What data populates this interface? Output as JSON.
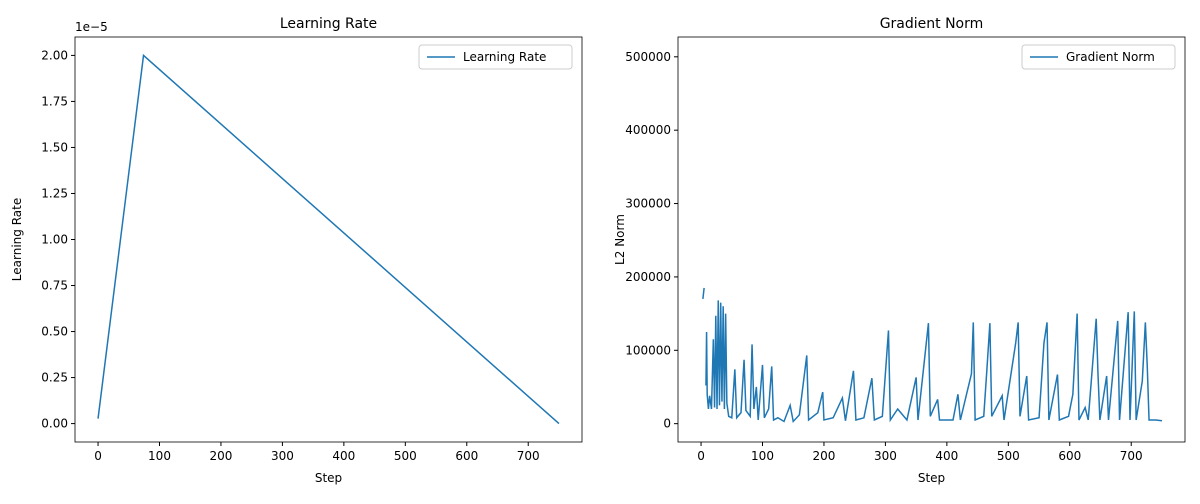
{
  "chart_data": [
    {
      "type": "line",
      "title": "Learning Rate",
      "xlabel": "Step",
      "ylabel": "Learning Rate",
      "y_offset_text": "1e−5",
      "x": [
        0,
        74,
        750
      ],
      "series": [
        {
          "name": "Learning Rate",
          "color": "#1f77b4",
          "values": [
            0.027,
            2.0,
            0.0
          ]
        }
      ],
      "xlim": [
        -37.5,
        787.5
      ],
      "ylim": [
        -0.1,
        2.1
      ],
      "xticks": [
        0,
        100,
        200,
        300,
        400,
        500,
        600,
        700
      ],
      "yticks": [
        {
          "value": 0,
          "label": "0.00"
        },
        0.25,
        {
          "value": 0.5,
          "label": "0.50"
        },
        0.75,
        {
          "value": 1,
          "label": "1.00"
        },
        1.25,
        {
          "value": 1.5,
          "label": "1.50"
        },
        1.75,
        {
          "value": 2,
          "label": "2.00"
        }
      ],
      "legend": "upper right"
    },
    {
      "type": "line",
      "title": "Gradient Norm",
      "xlabel": "Step",
      "ylabel": "L2 Norm",
      "x": [
        3,
        5,
        6,
        8,
        9,
        10,
        12,
        14,
        17,
        20,
        22,
        24,
        26,
        28,
        30,
        32,
        34,
        36,
        38,
        40,
        42,
        45,
        50,
        55,
        58,
        65,
        70,
        73,
        80,
        83,
        86,
        90,
        93,
        100,
        103,
        110,
        115,
        118,
        125,
        135,
        145,
        150,
        160,
        172,
        175,
        190,
        198,
        200,
        215,
        230,
        235,
        248,
        252,
        265,
        278,
        282,
        295,
        305,
        308,
        320,
        335,
        350,
        353,
        370,
        373,
        385,
        388,
        410,
        418,
        422,
        440,
        443,
        446,
        460,
        465,
        470,
        473,
        490,
        493,
        512,
        516,
        519,
        530,
        533,
        550,
        558,
        563,
        566,
        580,
        583,
        598,
        605,
        612,
        615,
        625,
        630,
        643,
        646,
        649,
        660,
        663,
        678,
        681,
        695,
        698,
        705,
        708,
        718,
        723,
        726,
        729,
        740,
        750
      ],
      "series": [
        {
          "name": "Gradient Norm",
          "color": "#1f77b4",
          "values": [
            170000,
            185000,
            null,
            52000,
            125000,
            40000,
            20000,
            38000,
            20000,
            115000,
            22000,
            147000,
            20000,
            168000,
            25000,
            165000,
            30000,
            160000,
            20000,
            150000,
            28000,
            10000,
            8000,
            74000,
            8000,
            15000,
            87000,
            18000,
            10000,
            108000,
            20000,
            50000,
            5000,
            80000,
            8000,
            20000,
            78000,
            5000,
            8000,
            3000,
            25000,
            3000,
            12000,
            93000,
            5000,
            15000,
            43000,
            5000,
            8000,
            35000,
            4000,
            72000,
            5000,
            8000,
            62000,
            5000,
            10000,
            127000,
            5000,
            20000,
            5000,
            63000,
            5000,
            137000,
            10000,
            33000,
            5000,
            5000,
            40000,
            5000,
            68000,
            138000,
            5000,
            10000,
            72000,
            137000,
            10000,
            38000,
            5000,
            110000,
            138000,
            10000,
            65000,
            5000,
            8000,
            110000,
            138000,
            5000,
            67000,
            5000,
            10000,
            40000,
            150000,
            5000,
            22000,
            5000,
            143000,
            66000,
            5000,
            65000,
            5000,
            140000,
            5000,
            152000,
            5000,
            153000,
            5000,
            58000,
            138000,
            80000,
            5000,
            5000,
            4000
          ]
        }
      ],
      "xlim": [
        -37.5,
        787.5
      ],
      "ylim": [
        -25000,
        527000
      ],
      "xticks": [
        0,
        100,
        200,
        300,
        400,
        500,
        600,
        700
      ],
      "yticks": [
        0,
        100000,
        200000,
        300000,
        400000,
        500000
      ],
      "legend": "upper right"
    }
  ]
}
